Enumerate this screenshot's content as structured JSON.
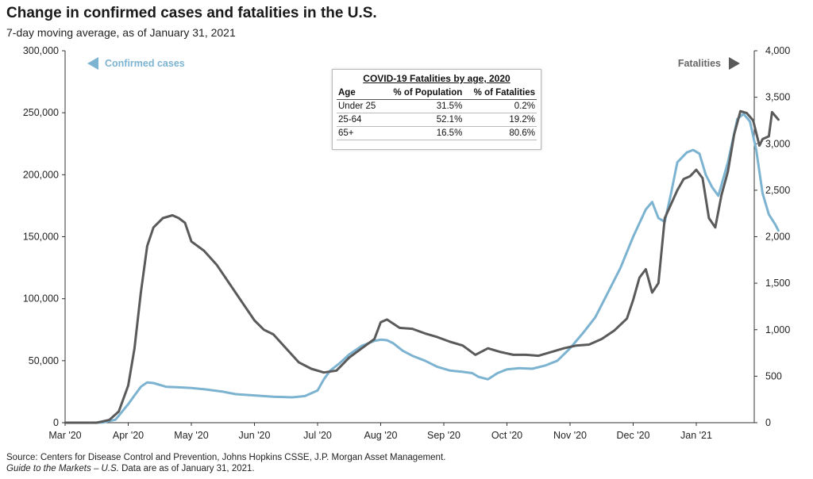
{
  "header": {
    "title": "Change in confirmed cases and fatalities in the U.S.",
    "subtitle": "7-day moving average, as of January 31, 2021"
  },
  "legend": {
    "cases_label": "Confirmed cases",
    "fatalities_label": "Fatalities"
  },
  "colors": {
    "cases": "#7cb3d1",
    "fatalities": "#5a5a5a"
  },
  "inset": {
    "title": "COVID-19 Fatalities by age, 2020",
    "headers": [
      "Age",
      "% of Population",
      "% of Fatalities"
    ],
    "rows": [
      [
        "Under 25",
        "31.5%",
        "0.2%"
      ],
      [
        "25-64",
        "52.1%",
        "19.2%"
      ],
      [
        "65+",
        "16.5%",
        "80.6%"
      ]
    ]
  },
  "footer": {
    "source": "Source: Centers for Disease Control and Prevention, Johns Hopkins CSSE, J.P. Morgan Asset Management.",
    "guide_italic": "Guide to the Markets – U.S.",
    "guide_rest": " Data are as of January 31, 2021."
  },
  "chart_data": {
    "type": "line",
    "title": "Change in confirmed cases and fatalities in the U.S.",
    "subtitle": "7-day moving average, as of January 31, 2021",
    "x_ticks": [
      "Mar '20",
      "Apr '20",
      "May '20",
      "Jun '20",
      "Jul '20",
      "Aug '20",
      "Sep '20",
      "Oct '20",
      "Nov '20",
      "Dec '20",
      "Jan '21"
    ],
    "y_left": {
      "ticks": [
        "0",
        "50,000",
        "100,000",
        "150,000",
        "200,000",
        "250,000",
        "300,000"
      ],
      "ylim": [
        0,
        300000
      ]
    },
    "y_right": {
      "ticks": [
        "0",
        "500",
        "1,000",
        "1,500",
        "2,000",
        "2,500",
        "3,000",
        "3,500",
        "4,000"
      ],
      "ylim": [
        0,
        4000
      ]
    },
    "x_range_months": [
      0,
      11.1
    ],
    "series": [
      {
        "name": "Confirmed cases",
        "axis": "left",
        "points": [
          [
            0,
            0
          ],
          [
            0.4,
            0
          ],
          [
            0.6,
            200
          ],
          [
            0.8,
            2500
          ],
          [
            1.0,
            15000
          ],
          [
            1.1,
            22000
          ],
          [
            1.2,
            29000
          ],
          [
            1.3,
            32500
          ],
          [
            1.4,
            32000
          ],
          [
            1.6,
            29000
          ],
          [
            1.8,
            28500
          ],
          [
            2.0,
            28000
          ],
          [
            2.2,
            27000
          ],
          [
            2.5,
            25000
          ],
          [
            2.7,
            23000
          ],
          [
            3.0,
            22000
          ],
          [
            3.3,
            21000
          ],
          [
            3.6,
            20500
          ],
          [
            3.8,
            21500
          ],
          [
            4.0,
            26000
          ],
          [
            4.1,
            35000
          ],
          [
            4.2,
            42000
          ],
          [
            4.35,
            48000
          ],
          [
            4.5,
            55000
          ],
          [
            4.7,
            62000
          ],
          [
            4.9,
            66000
          ],
          [
            5.0,
            67000
          ],
          [
            5.1,
            66500
          ],
          [
            5.2,
            64000
          ],
          [
            5.35,
            58000
          ],
          [
            5.5,
            54000
          ],
          [
            5.7,
            50000
          ],
          [
            5.9,
            45000
          ],
          [
            6.1,
            42000
          ],
          [
            6.3,
            41000
          ],
          [
            6.45,
            40000
          ],
          [
            6.55,
            37000
          ],
          [
            6.7,
            35000
          ],
          [
            6.85,
            40000
          ],
          [
            7.0,
            43000
          ],
          [
            7.2,
            44000
          ],
          [
            7.4,
            43500
          ],
          [
            7.6,
            46000
          ],
          [
            7.8,
            50000
          ],
          [
            8.0,
            60000
          ],
          [
            8.2,
            72000
          ],
          [
            8.4,
            85000
          ],
          [
            8.6,
            105000
          ],
          [
            8.8,
            125000
          ],
          [
            9.0,
            150000
          ],
          [
            9.2,
            172000
          ],
          [
            9.3,
            178000
          ],
          [
            9.4,
            165000
          ],
          [
            9.5,
            162000
          ],
          [
            9.6,
            185000
          ],
          [
            9.7,
            210000
          ],
          [
            9.85,
            218000
          ],
          [
            9.95,
            220000
          ],
          [
            10.05,
            217000
          ],
          [
            10.15,
            200000
          ],
          [
            10.25,
            190000
          ],
          [
            10.35,
            183000
          ],
          [
            10.5,
            210000
          ],
          [
            10.65,
            245000
          ],
          [
            10.75,
            249000
          ],
          [
            10.85,
            243000
          ],
          [
            10.95,
            220000
          ],
          [
            11.05,
            185000
          ],
          [
            11.15,
            168000
          ],
          [
            11.25,
            160000
          ],
          [
            11.3,
            155000
          ]
        ]
      },
      {
        "name": "Fatalities",
        "axis": "right",
        "points": [
          [
            0,
            0
          ],
          [
            0.5,
            0
          ],
          [
            0.7,
            30
          ],
          [
            0.85,
            120
          ],
          [
            1.0,
            400
          ],
          [
            1.1,
            800
          ],
          [
            1.2,
            1400
          ],
          [
            1.3,
            1900
          ],
          [
            1.4,
            2100
          ],
          [
            1.55,
            2200
          ],
          [
            1.7,
            2230
          ],
          [
            1.8,
            2200
          ],
          [
            1.9,
            2150
          ],
          [
            2.0,
            1950
          ],
          [
            2.2,
            1850
          ],
          [
            2.4,
            1700
          ],
          [
            2.6,
            1500
          ],
          [
            2.8,
            1300
          ],
          [
            3.0,
            1100
          ],
          [
            3.15,
            1000
          ],
          [
            3.3,
            950
          ],
          [
            3.5,
            800
          ],
          [
            3.7,
            650
          ],
          [
            3.9,
            580
          ],
          [
            4.1,
            540
          ],
          [
            4.3,
            560
          ],
          [
            4.5,
            700
          ],
          [
            4.7,
            800
          ],
          [
            4.9,
            900
          ],
          [
            5.0,
            1080
          ],
          [
            5.1,
            1110
          ],
          [
            5.3,
            1020
          ],
          [
            5.5,
            1010
          ],
          [
            5.7,
            960
          ],
          [
            5.9,
            920
          ],
          [
            6.1,
            870
          ],
          [
            6.3,
            830
          ],
          [
            6.5,
            730
          ],
          [
            6.7,
            800
          ],
          [
            6.9,
            760
          ],
          [
            7.1,
            730
          ],
          [
            7.3,
            730
          ],
          [
            7.5,
            720
          ],
          [
            7.7,
            760
          ],
          [
            7.9,
            800
          ],
          [
            8.1,
            830
          ],
          [
            8.3,
            840
          ],
          [
            8.5,
            900
          ],
          [
            8.7,
            990
          ],
          [
            8.9,
            1120
          ],
          [
            9.0,
            1320
          ],
          [
            9.1,
            1560
          ],
          [
            9.2,
            1650
          ],
          [
            9.3,
            1400
          ],
          [
            9.4,
            1500
          ],
          [
            9.5,
            2200
          ],
          [
            9.6,
            2350
          ],
          [
            9.7,
            2500
          ],
          [
            9.8,
            2620
          ],
          [
            9.9,
            2650
          ],
          [
            10.0,
            2720
          ],
          [
            10.1,
            2630
          ],
          [
            10.2,
            2200
          ],
          [
            10.3,
            2100
          ],
          [
            10.4,
            2450
          ],
          [
            10.5,
            2700
          ],
          [
            10.6,
            3100
          ],
          [
            10.7,
            3350
          ],
          [
            10.8,
            3330
          ],
          [
            10.9,
            3250
          ],
          [
            11.0,
            2980
          ],
          [
            11.05,
            3050
          ],
          [
            11.15,
            3080
          ],
          [
            11.2,
            3340
          ],
          [
            11.3,
            3260
          ]
        ]
      }
    ]
  }
}
